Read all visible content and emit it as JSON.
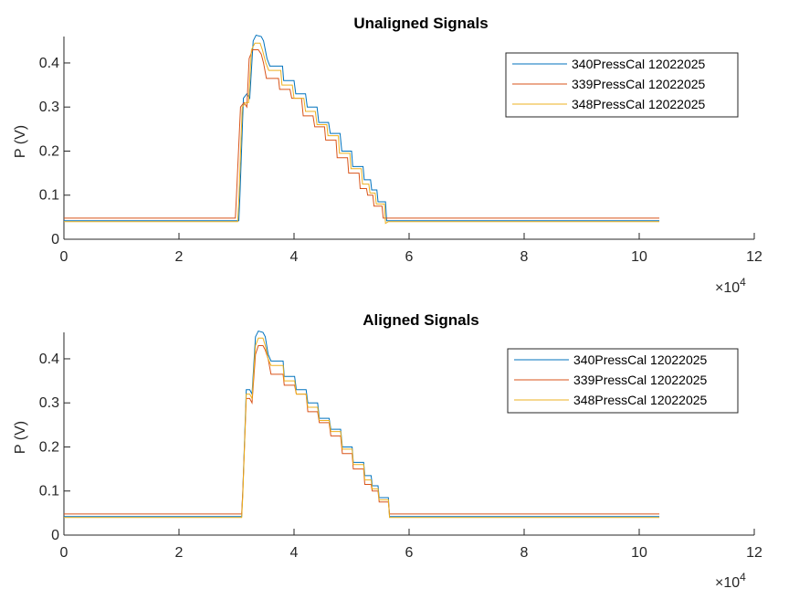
{
  "chart_data": [
    {
      "type": "line",
      "title": "Unaligned Signals",
      "ylabel": "P (V)",
      "xlim": [
        0,
        120000
      ],
      "ylim": [
        0,
        0.46
      ],
      "xticks": [
        0,
        2,
        4,
        6,
        8,
        10,
        12
      ],
      "yticks": [
        0,
        0.1,
        0.2,
        0.3,
        0.4
      ],
      "ytick_labels": [
        "0",
        "0.1",
        "0.2",
        "0.3",
        "0.4"
      ],
      "x_exponent_base": "×10",
      "x_exponent_power": "4",
      "legend_position": "top-right",
      "series": [
        {
          "name": "340PressCal 12022025",
          "color": "#0072BD",
          "points": [
            [
              0,
              0.042
            ],
            [
              30400,
              0.042
            ],
            [
              30600,
              0.1
            ],
            [
              31200,
              0.32
            ],
            [
              31800,
              0.33
            ],
            [
              32300,
              0.32
            ],
            [
              32900,
              0.45
            ],
            [
              33400,
              0.463
            ],
            [
              34300,
              0.46
            ],
            [
              34700,
              0.45
            ],
            [
              35300,
              0.41
            ],
            [
              35800,
              0.393
            ],
            [
              38000,
              0.393
            ],
            [
              38200,
              0.36
            ],
            [
              40000,
              0.36
            ],
            [
              40300,
              0.33
            ],
            [
              42000,
              0.33
            ],
            [
              42300,
              0.3
            ],
            [
              44000,
              0.3
            ],
            [
              44300,
              0.265
            ],
            [
              46000,
              0.265
            ],
            [
              46300,
              0.24
            ],
            [
              48000,
              0.24
            ],
            [
              48300,
              0.2
            ],
            [
              50000,
              0.2
            ],
            [
              50200,
              0.165
            ],
            [
              52000,
              0.165
            ],
            [
              52200,
              0.135
            ],
            [
              53300,
              0.135
            ],
            [
              53500,
              0.112
            ],
            [
              54400,
              0.112
            ],
            [
              54600,
              0.085
            ],
            [
              55900,
              0.085
            ],
            [
              56100,
              0.042
            ],
            [
              103500,
              0.042
            ]
          ]
        },
        {
          "name": "339PressCal 12022025",
          "color": "#D95319",
          "points": [
            [
              0,
              0.048
            ],
            [
              29800,
              0.048
            ],
            [
              30000,
              0.1
            ],
            [
              30700,
              0.3
            ],
            [
              31300,
              0.31
            ],
            [
              31800,
              0.3
            ],
            [
              32200,
              0.41
            ],
            [
              32800,
              0.43
            ],
            [
              33800,
              0.43
            ],
            [
              34300,
              0.42
            ],
            [
              34700,
              0.4
            ],
            [
              35200,
              0.365
            ],
            [
              37300,
              0.365
            ],
            [
              37500,
              0.34
            ],
            [
              39300,
              0.34
            ],
            [
              39600,
              0.32
            ],
            [
              41300,
              0.32
            ],
            [
              41600,
              0.28
            ],
            [
              43300,
              0.28
            ],
            [
              43600,
              0.255
            ],
            [
              45300,
              0.255
            ],
            [
              45500,
              0.225
            ],
            [
              47300,
              0.225
            ],
            [
              47500,
              0.185
            ],
            [
              49300,
              0.185
            ],
            [
              49500,
              0.15
            ],
            [
              51300,
              0.15
            ],
            [
              51500,
              0.115
            ],
            [
              52600,
              0.115
            ],
            [
              52800,
              0.1
            ],
            [
              53700,
              0.1
            ],
            [
              53900,
              0.075
            ],
            [
              55300,
              0.075
            ],
            [
              55500,
              0.048
            ],
            [
              103500,
              0.048
            ]
          ]
        },
        {
          "name": "348PressCal 12022025",
          "color": "#EDB120",
          "points": [
            [
              0,
              0.04
            ],
            [
              30200,
              0.04
            ],
            [
              30400,
              0.09
            ],
            [
              31000,
              0.3
            ],
            [
              31600,
              0.31
            ],
            [
              32100,
              0.31
            ],
            [
              32600,
              0.43
            ],
            [
              33200,
              0.445
            ],
            [
              34100,
              0.445
            ],
            [
              34500,
              0.43
            ],
            [
              35100,
              0.4
            ],
            [
              35600,
              0.383
            ],
            [
              37700,
              0.383
            ],
            [
              37900,
              0.35
            ],
            [
              39700,
              0.35
            ],
            [
              40000,
              0.32
            ],
            [
              41700,
              0.32
            ],
            [
              42000,
              0.29
            ],
            [
              43700,
              0.29
            ],
            [
              44000,
              0.26
            ],
            [
              45700,
              0.26
            ],
            [
              45900,
              0.235
            ],
            [
              47700,
              0.235
            ],
            [
              47900,
              0.195
            ],
            [
              49700,
              0.195
            ],
            [
              49900,
              0.16
            ],
            [
              51700,
              0.16
            ],
            [
              51900,
              0.125
            ],
            [
              53000,
              0.125
            ],
            [
              53200,
              0.105
            ],
            [
              54100,
              0.105
            ],
            [
              54300,
              0.08
            ],
            [
              55700,
              0.08
            ],
            [
              55900,
              0.036
            ],
            [
              56400,
              0.04
            ],
            [
              103500,
              0.04
            ]
          ]
        }
      ]
    },
    {
      "type": "line",
      "title": "Aligned Signals",
      "ylabel": "P (V)",
      "xlim": [
        0,
        120000
      ],
      "ylim": [
        0,
        0.46
      ],
      "xticks": [
        0,
        2,
        4,
        6,
        8,
        10,
        12
      ],
      "yticks": [
        0,
        0.1,
        0.2,
        0.3,
        0.4
      ],
      "ytick_labels": [
        "0",
        "0.1",
        "0.2",
        "0.3",
        "0.4"
      ],
      "x_exponent_base": "×10",
      "x_exponent_power": "4",
      "legend_position": "top-right",
      "series": [
        {
          "name": "340PressCal 12022025",
          "color": "#0072BD",
          "points": [
            [
              0,
              0.042
            ],
            [
              30900,
              0.042
            ],
            [
              31100,
              0.1
            ],
            [
              31700,
              0.33
            ],
            [
              32300,
              0.33
            ],
            [
              32700,
              0.32
            ],
            [
              33300,
              0.45
            ],
            [
              33800,
              0.463
            ],
            [
              34600,
              0.46
            ],
            [
              35000,
              0.45
            ],
            [
              35500,
              0.41
            ],
            [
              36000,
              0.395
            ],
            [
              38100,
              0.395
            ],
            [
              38300,
              0.36
            ],
            [
              40100,
              0.36
            ],
            [
              40400,
              0.33
            ],
            [
              42100,
              0.33
            ],
            [
              42400,
              0.3
            ],
            [
              44100,
              0.3
            ],
            [
              44400,
              0.265
            ],
            [
              46100,
              0.265
            ],
            [
              46400,
              0.24
            ],
            [
              48100,
              0.24
            ],
            [
              48400,
              0.2
            ],
            [
              50100,
              0.2
            ],
            [
              50300,
              0.165
            ],
            [
              52100,
              0.165
            ],
            [
              52300,
              0.135
            ],
            [
              53400,
              0.135
            ],
            [
              53600,
              0.112
            ],
            [
              54600,
              0.112
            ],
            [
              54800,
              0.085
            ],
            [
              56400,
              0.085
            ],
            [
              56600,
              0.042
            ],
            [
              103500,
              0.042
            ]
          ]
        },
        {
          "name": "339PressCal 12022025",
          "color": "#D95319",
          "points": [
            [
              0,
              0.048
            ],
            [
              30900,
              0.048
            ],
            [
              31100,
              0.1
            ],
            [
              31700,
              0.31
            ],
            [
              32300,
              0.31
            ],
            [
              32700,
              0.3
            ],
            [
              33300,
              0.41
            ],
            [
              33800,
              0.43
            ],
            [
              34600,
              0.43
            ],
            [
              35000,
              0.42
            ],
            [
              35500,
              0.4
            ],
            [
              36000,
              0.365
            ],
            [
              38100,
              0.365
            ],
            [
              38300,
              0.34
            ],
            [
              40100,
              0.34
            ],
            [
              40400,
              0.32
            ],
            [
              42100,
              0.32
            ],
            [
              42400,
              0.28
            ],
            [
              44100,
              0.28
            ],
            [
              44400,
              0.255
            ],
            [
              46100,
              0.255
            ],
            [
              46400,
              0.225
            ],
            [
              48100,
              0.225
            ],
            [
              48400,
              0.185
            ],
            [
              50100,
              0.185
            ],
            [
              50300,
              0.15
            ],
            [
              52100,
              0.15
            ],
            [
              52300,
              0.115
            ],
            [
              53400,
              0.115
            ],
            [
              53600,
              0.1
            ],
            [
              54600,
              0.1
            ],
            [
              54800,
              0.075
            ],
            [
              56400,
              0.075
            ],
            [
              56600,
              0.048
            ],
            [
              103500,
              0.048
            ]
          ]
        },
        {
          "name": "348PressCal 12022025",
          "color": "#EDB120",
          "points": [
            [
              0,
              0.04
            ],
            [
              30900,
              0.04
            ],
            [
              31100,
              0.09
            ],
            [
              31700,
              0.32
            ],
            [
              32300,
              0.32
            ],
            [
              32700,
              0.31
            ],
            [
              33300,
              0.43
            ],
            [
              33800,
              0.447
            ],
            [
              34600,
              0.447
            ],
            [
              35000,
              0.43
            ],
            [
              35500,
              0.4
            ],
            [
              36000,
              0.385
            ],
            [
              38100,
              0.385
            ],
            [
              38300,
              0.35
            ],
            [
              40100,
              0.35
            ],
            [
              40400,
              0.32
            ],
            [
              42100,
              0.32
            ],
            [
              42400,
              0.29
            ],
            [
              44100,
              0.29
            ],
            [
              44400,
              0.26
            ],
            [
              46100,
              0.26
            ],
            [
              46400,
              0.235
            ],
            [
              48100,
              0.235
            ],
            [
              48400,
              0.195
            ],
            [
              50100,
              0.195
            ],
            [
              50300,
              0.16
            ],
            [
              52100,
              0.16
            ],
            [
              52300,
              0.125
            ],
            [
              53400,
              0.125
            ],
            [
              53600,
              0.105
            ],
            [
              54600,
              0.105
            ],
            [
              54800,
              0.08
            ],
            [
              56400,
              0.08
            ],
            [
              56600,
              0.04
            ],
            [
              103500,
              0.04
            ]
          ]
        }
      ]
    }
  ]
}
